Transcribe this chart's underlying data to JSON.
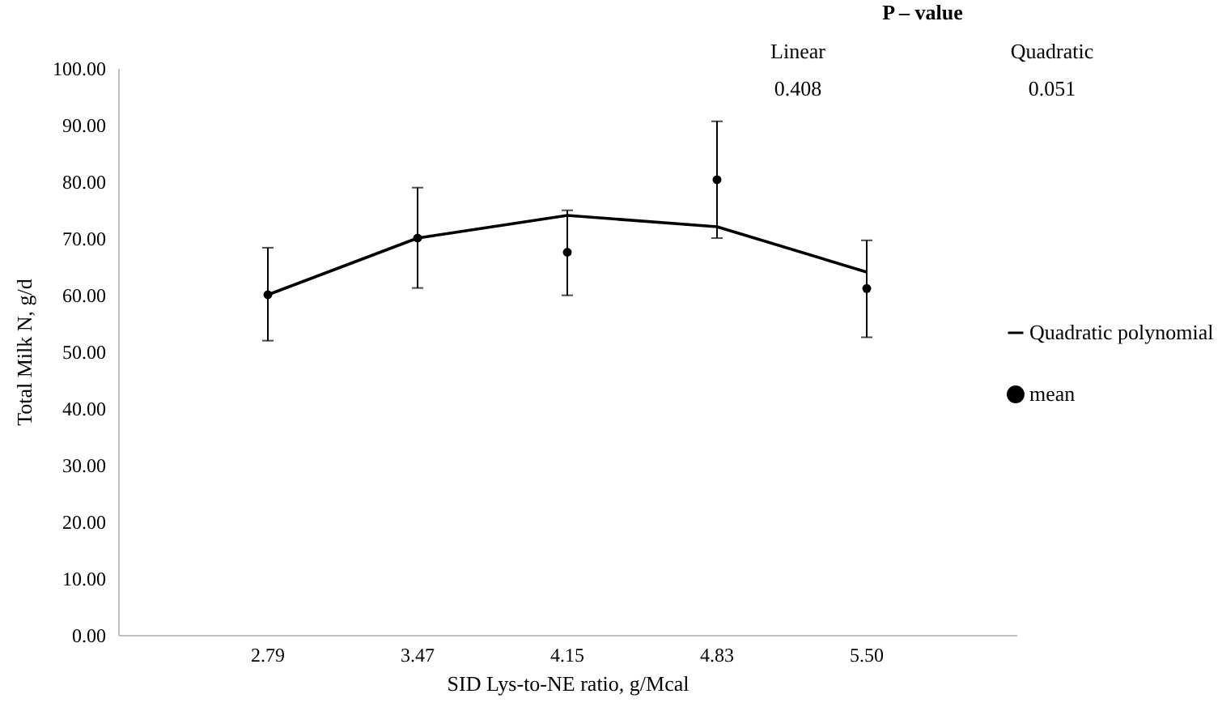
{
  "chart_data": {
    "type": "line",
    "xlabel": "SID Lys-to-NE ratio, g/Mcal",
    "ylabel": "Total Milk N, g/d",
    "categories": [
      "2.79",
      "3.47",
      "4.15",
      "4.83",
      "5.50"
    ],
    "series": [
      {
        "name": "Quadratic polynomial",
        "type": "line",
        "color": "#000000",
        "values": [
          60,
          70,
          74,
          72,
          64
        ]
      },
      {
        "name": "mean",
        "type": "scatter",
        "color": "#000000",
        "marker": "circle",
        "values": [
          60,
          70,
          67.5,
          80.3,
          61.1
        ],
        "errors": [
          [
            51.9,
            68.3
          ],
          [
            61.2,
            78.9
          ],
          [
            59.9,
            74.9
          ],
          [
            70,
            90.6
          ],
          [
            52.5,
            69.6
          ]
        ]
      }
    ],
    "ylim": [
      0,
      100
    ],
    "yticks": [
      {
        "value": 0,
        "label": "0.00"
      },
      {
        "value": 10,
        "label": "10.00"
      },
      {
        "value": 20,
        "label": "20.00"
      },
      {
        "value": 30,
        "label": "30.00"
      },
      {
        "value": 40,
        "label": "40.00"
      },
      {
        "value": 50,
        "label": "50.00"
      },
      {
        "value": 60,
        "label": "60.00"
      },
      {
        "value": 70,
        "label": "70.00"
      },
      {
        "value": 80,
        "label": "80.00"
      },
      {
        "value": 90,
        "label": "90.00"
      },
      {
        "value": 100,
        "label": "100.00"
      }
    ],
    "grid": false,
    "legend": "right",
    "annotations": [
      "P – value",
      "Linear",
      "Quadratic",
      "0.408",
      "0.051"
    ]
  }
}
